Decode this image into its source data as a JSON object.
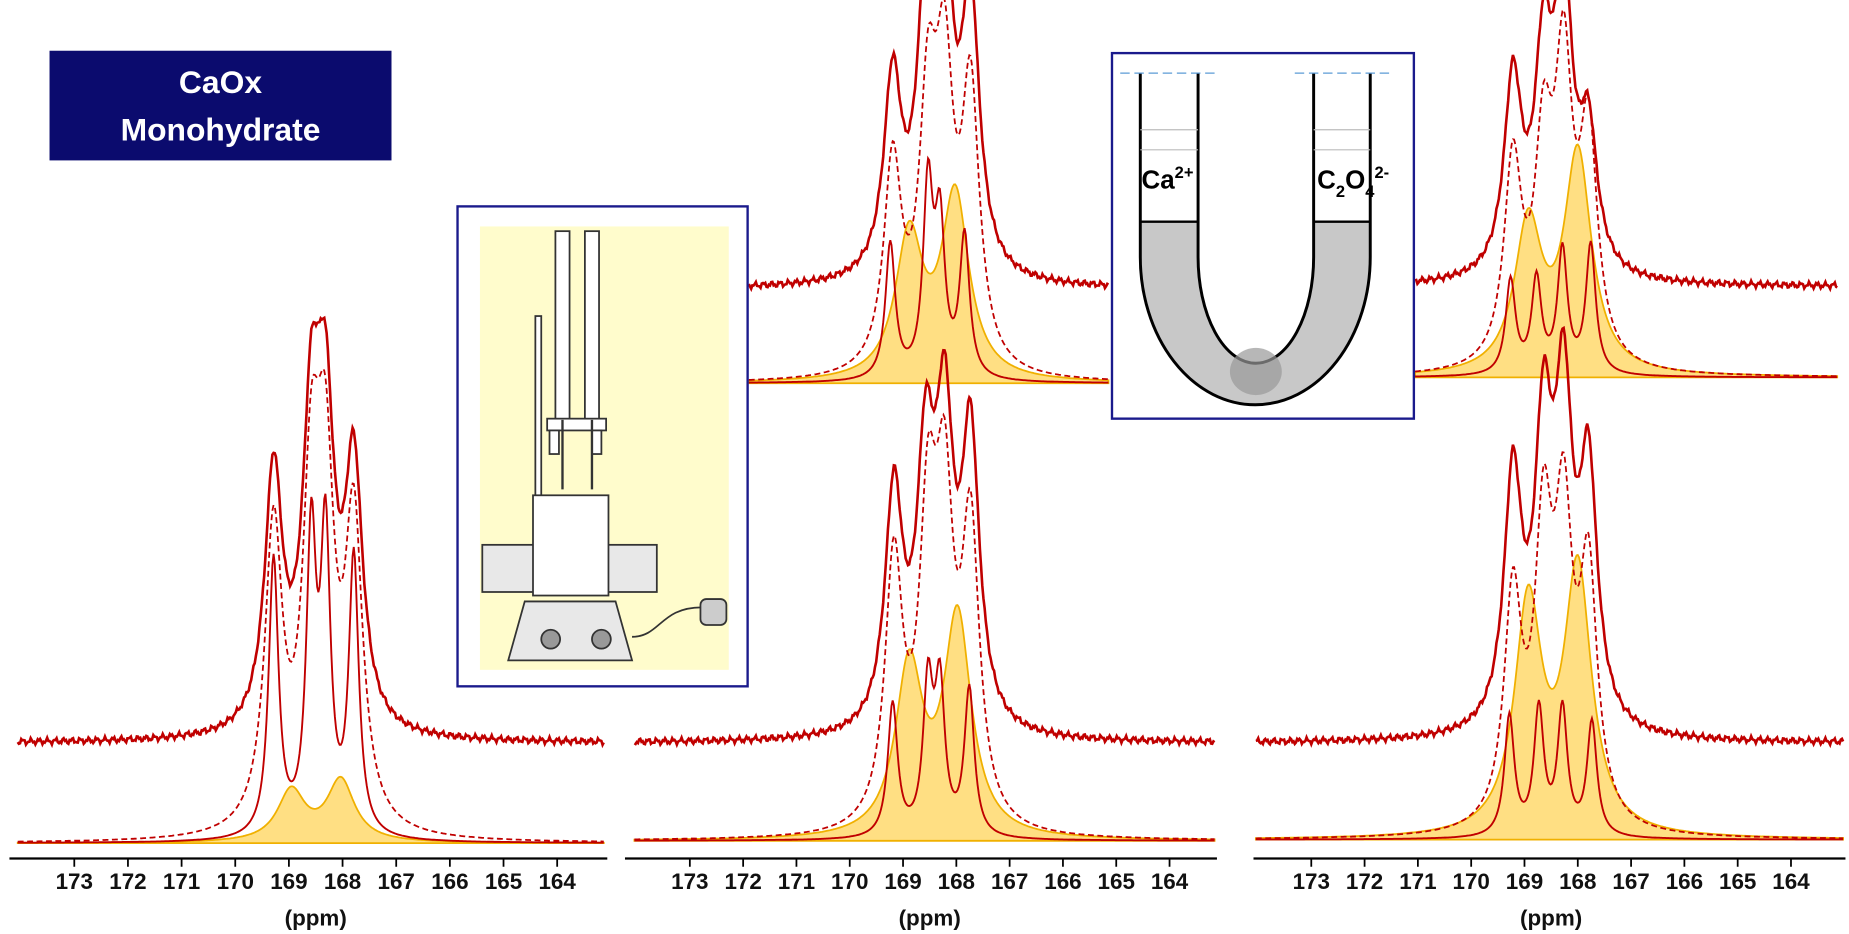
{
  "label": {
    "lines": [
      "CaOx",
      "Monohydrate"
    ]
  },
  "panels": [
    {
      "ticks": [
        173,
        172,
        171,
        170,
        169,
        168,
        167,
        166,
        165,
        164
      ],
      "x_label": "(ppm)"
    },
    {
      "ticks": [
        173,
        172,
        171,
        170,
        169,
        168,
        167,
        166,
        165,
        164
      ],
      "x_label": "(ppm)"
    },
    {
      "ticks": [
        173,
        172,
        171,
        170,
        169,
        168,
        167,
        166,
        165,
        164
      ],
      "x_label": "(ppm)"
    }
  ],
  "u_tube": {
    "left": {
      "base": "Ca",
      "sup": "2+"
    },
    "right": {
      "c": "C",
      "c_sub": "2",
      "o": "O",
      "o_sub": "4",
      "sup": "2-"
    }
  }
}
